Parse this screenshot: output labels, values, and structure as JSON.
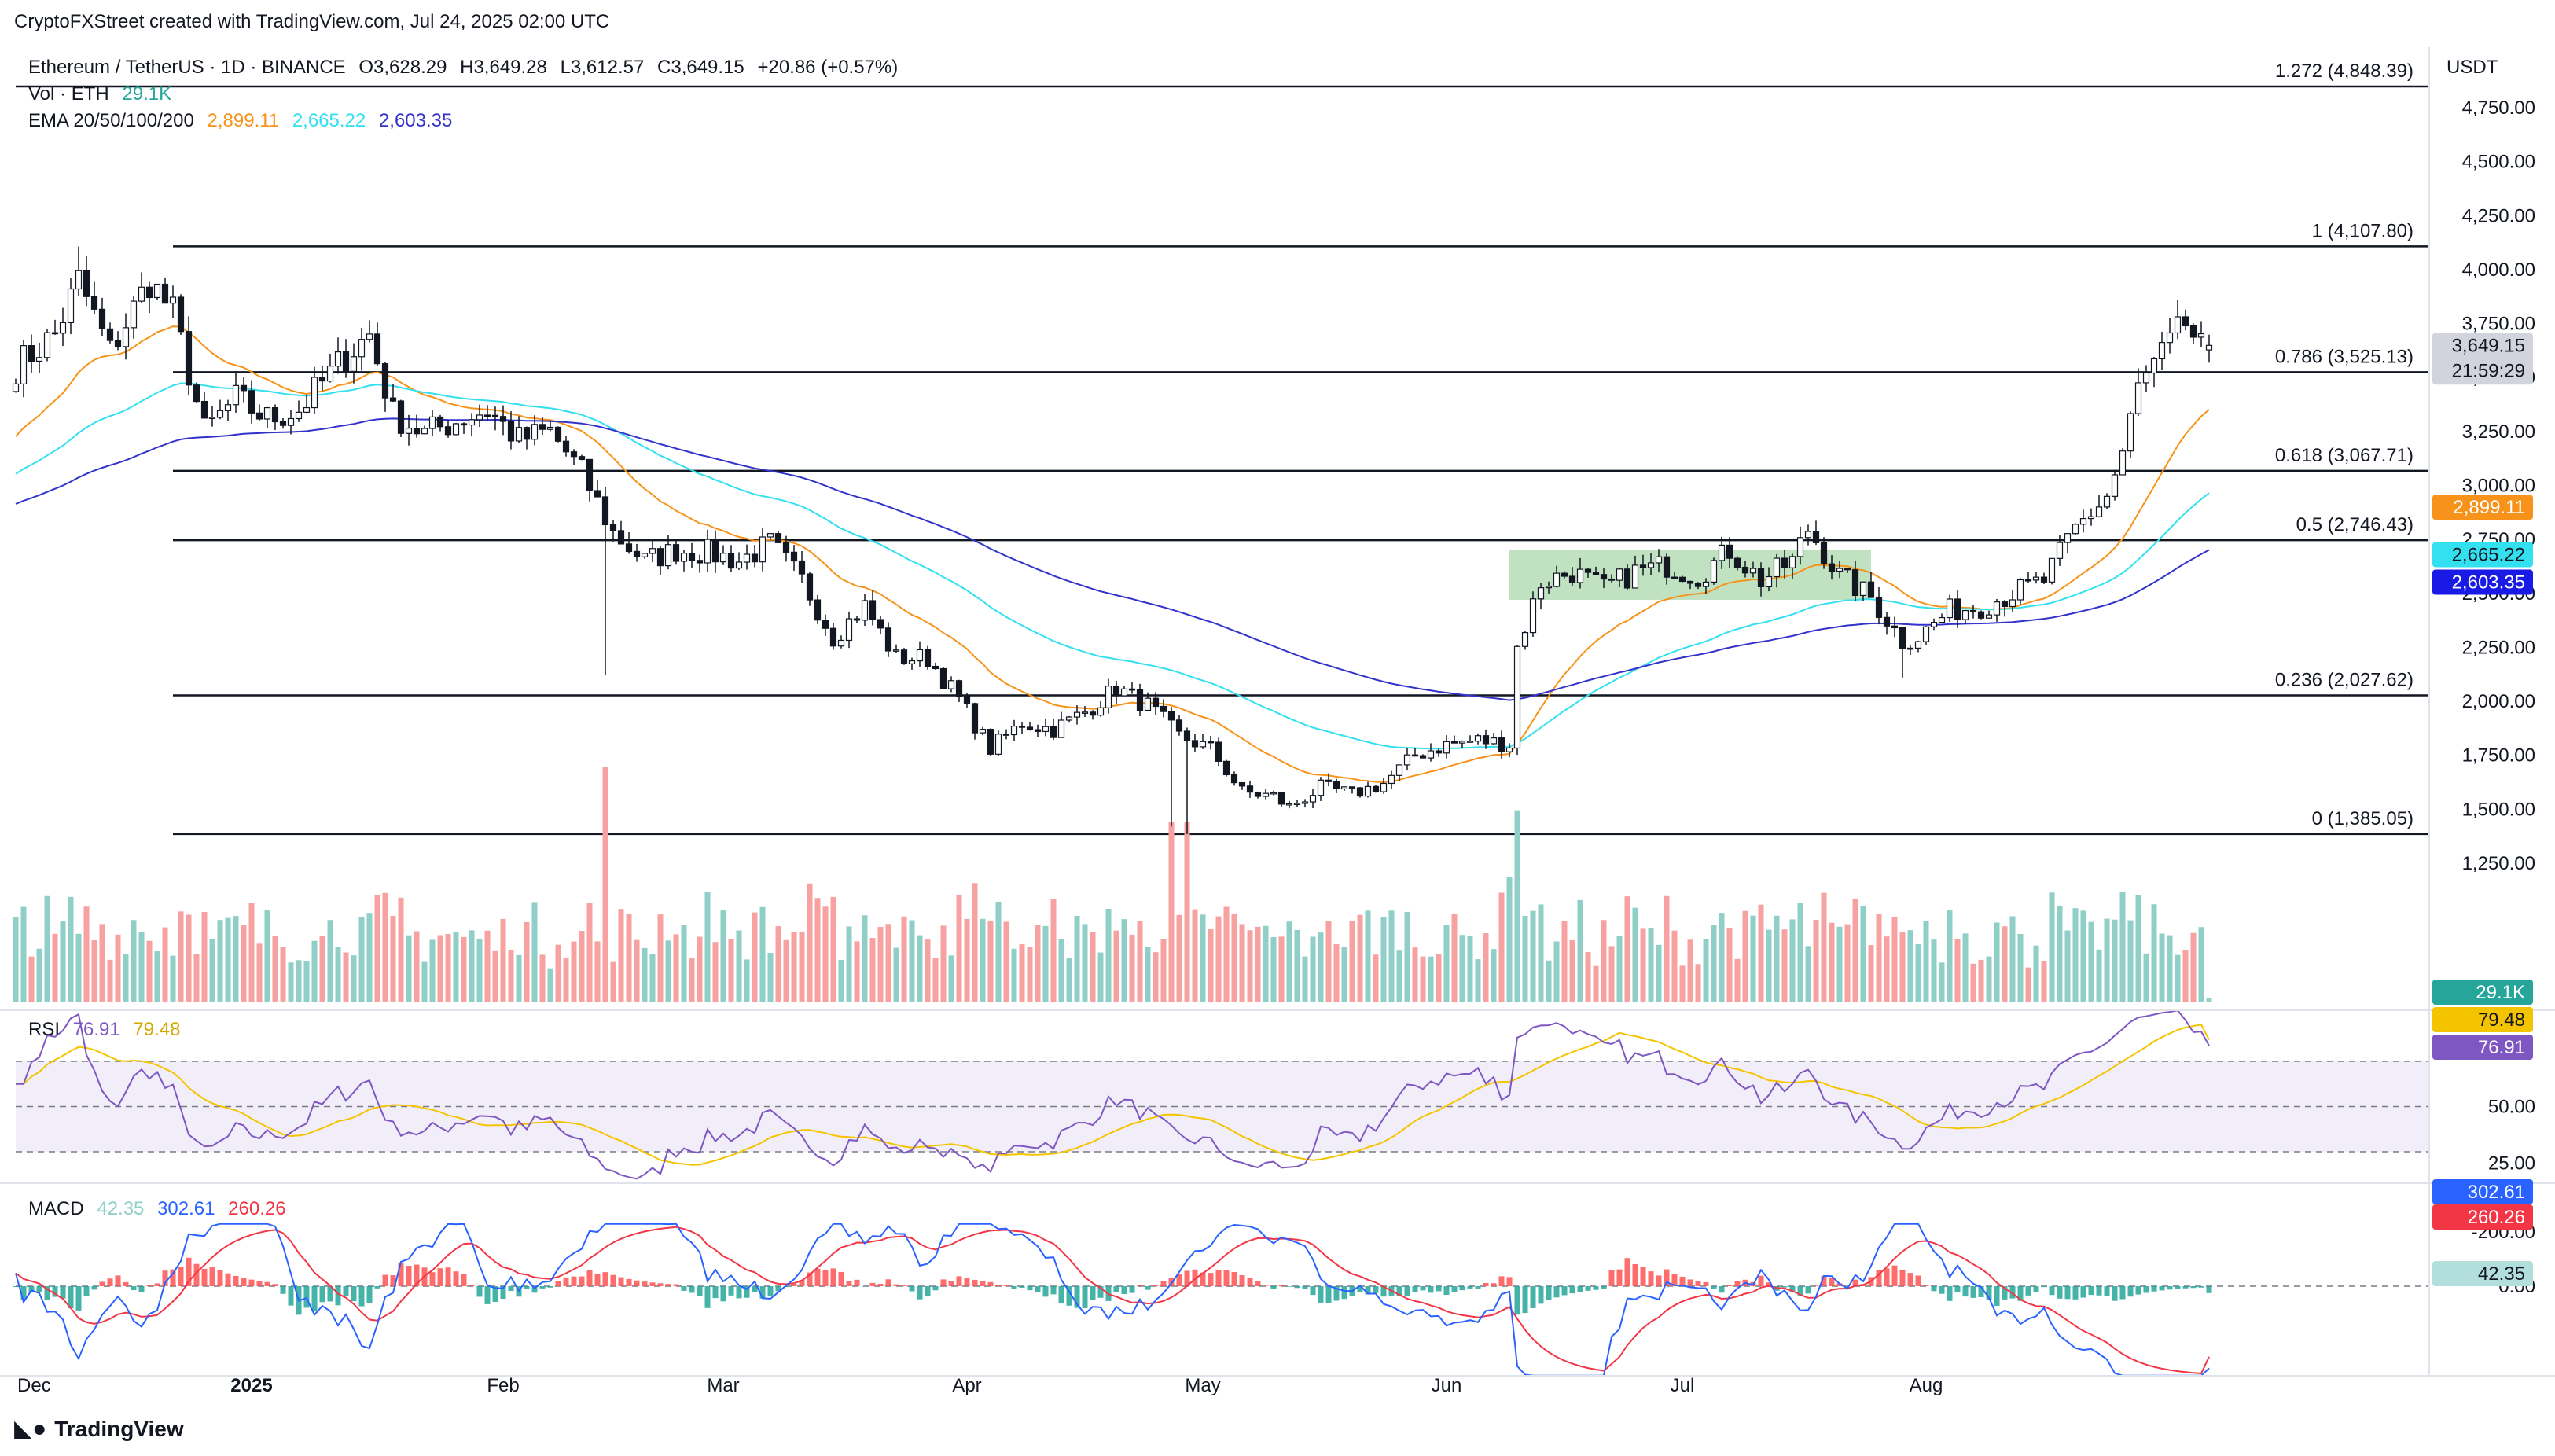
{
  "credit": "CryptoFXStreet created with TradingView.com, Jul 24, 2025 02:00 UTC",
  "brand": "TradingView",
  "logo_icon": "tradingview-logo-icon",
  "currency": "USDT",
  "legend": {
    "symbol": "Ethereum / TetherUS · 1D · BINANCE",
    "open": "O3,628.29",
    "high": "H3,649.28",
    "low": "L3,612.57",
    "close": "C3,649.15",
    "change": "+20.86 (+0.57%)",
    "vol_label": "Vol · ETH",
    "vol_value": "29.1K",
    "ema_label": "EMA 20/50/100/200",
    "ema20": "2,899.11",
    "ema50": "2,665.22",
    "ema100": "2,603.35"
  },
  "colors": {
    "up": "#26a69a",
    "down": "#ef5350",
    "vol_up": "#8fcfc7",
    "vol_down": "#f7a1a1",
    "ema20": "#f7931a",
    "ema50": "#33e0f0",
    "ema100": "#3333cc",
    "rsi": "#7e57c2",
    "rsi_ma": "#f5c400",
    "macd": "#2962ff",
    "signal": "#f23645",
    "fib": "#131722",
    "range_box": "#a5d6a7"
  },
  "chart_data": [
    {
      "type": "candlestick",
      "title": "Ethereum / TetherUS · 1D · BINANCE",
      "x_tick_labels": [
        "Dec",
        "2025",
        "Feb",
        "Mar",
        "Apr",
        "May",
        "Jun",
        "Jul",
        "Aug"
      ],
      "y_tick_labels": [
        "1,250.00",
        "1,500.00",
        "1,750.00",
        "2,000.00",
        "2,250.00",
        "2,500.00",
        "2,750.00",
        "3,000.00",
        "3,250.00",
        "3,500.00",
        "3,750.00",
        "4,000.00",
        "4,250.00",
        "4,500.00",
        "4,750.00"
      ],
      "y_ticks": [
        1250,
        1500,
        1750,
        2000,
        2250,
        2500,
        2750,
        3000,
        3250,
        3500,
        3750,
        4000,
        4250,
        4500,
        4750
      ],
      "ylim": [
        1100,
        4950
      ],
      "grid": false,
      "price_anchors": [
        [
          0,
          3550
        ],
        [
          5,
          3700
        ],
        [
          8,
          3950
        ],
        [
          12,
          3620
        ],
        [
          17,
          3950
        ],
        [
          20,
          3800
        ],
        [
          24,
          3250
        ],
        [
          28,
          3400
        ],
        [
          32,
          3310
        ],
        [
          36,
          3350
        ],
        [
          42,
          3600
        ],
        [
          45,
          3700
        ],
        [
          48,
          3330
        ],
        [
          52,
          3240
        ],
        [
          56,
          3300
        ],
        [
          60,
          3350
        ],
        [
          64,
          3210
        ],
        [
          68,
          3250
        ],
        [
          72,
          3060
        ],
        [
          76,
          2780
        ],
        [
          80,
          2650
        ],
        [
          84,
          2700
        ],
        [
          88,
          2690
        ],
        [
          92,
          2650
        ],
        [
          96,
          2730
        ],
        [
          100,
          2560
        ],
        [
          104,
          2300
        ],
        [
          108,
          2440
        ],
        [
          112,
          2200
        ],
        [
          116,
          2200
        ],
        [
          120,
          2010
        ],
        [
          124,
          1780
        ],
        [
          128,
          1900
        ],
        [
          132,
          1870
        ],
        [
          136,
          1950
        ],
        [
          140,
          2060
        ],
        [
          144,
          1980
        ],
        [
          148,
          1840
        ],
        [
          152,
          1780
        ],
        [
          156,
          1580
        ],
        [
          160,
          1560
        ],
        [
          162,
          1510
        ],
        [
          166,
          1600
        ],
        [
          170,
          1570
        ],
        [
          174,
          1620
        ],
        [
          178,
          1750
        ],
        [
          182,
          1800
        ],
        [
          186,
          1820
        ],
        [
          190,
          1800
        ],
        [
          191,
          2250
        ],
        [
          194,
          2550
        ],
        [
          198,
          2600
        ],
        [
          202,
          2520
        ],
        [
          206,
          2600
        ],
        [
          210,
          2630
        ],
        [
          214,
          2580
        ],
        [
          218,
          2700
        ],
        [
          222,
          2560
        ],
        [
          226,
          2650
        ],
        [
          228,
          2800
        ],
        [
          232,
          2580
        ],
        [
          236,
          2480
        ],
        [
          238,
          2380
        ],
        [
          240,
          2280
        ],
        [
          242,
          2300
        ],
        [
          246,
          2420
        ],
        [
          250,
          2440
        ],
        [
          254,
          2500
        ],
        [
          258,
          2560
        ],
        [
          262,
          2800
        ],
        [
          266,
          2950
        ],
        [
          268,
          3150
        ],
        [
          270,
          3450
        ],
        [
          273,
          3600
        ],
        [
          276,
          3750
        ],
        [
          278,
          3628
        ],
        [
          279,
          3649
        ]
      ],
      "last_price": "3,649.15",
      "countdown": "21:59:29",
      "fibonacci": [
        {
          "level": 1.272,
          "price": 4848.39,
          "label": "1.272 (4,848.39)"
        },
        {
          "level": 1,
          "price": 4107.8,
          "label": "1 (4,107.80)"
        },
        {
          "level": 0.786,
          "price": 3525.13,
          "label": "0.786 (3,525.13)"
        },
        {
          "level": 0.618,
          "price": 3067.71,
          "label": "0.618 (3,067.71)"
        },
        {
          "level": 0.5,
          "price": 2746.43,
          "label": "0.5 (2,746.43)"
        },
        {
          "level": 0.236,
          "price": 2027.62,
          "label": "0.236 (2,027.62)"
        },
        {
          "level": 0,
          "price": 1385.05,
          "label": "0 (1,385.05)"
        }
      ],
      "range_box": {
        "price_low": 2470,
        "price_high": 2700
      },
      "ema_last": {
        "ema20": "2,899.11",
        "ema50": "2,665.22",
        "ema100": "2,603.35"
      },
      "volume_last": "29.1K"
    },
    {
      "type": "line",
      "title": "RSI",
      "series": [
        {
          "name": "RSI",
          "last": "76.91"
        },
        {
          "name": "RSI MA",
          "last": "79.48"
        }
      ],
      "y_tick_labels": [
        "25.00",
        "50.00"
      ],
      "y_ticks": [
        25,
        50
      ],
      "bands": [
        70,
        50,
        30
      ],
      "ylim": [
        20,
        95
      ]
    },
    {
      "type": "bar",
      "title": "MACD",
      "series": [
        {
          "name": "Histogram",
          "last": "42.35"
        },
        {
          "name": "MACD",
          "last": "302.61"
        },
        {
          "name": "Signal",
          "last": "260.26"
        }
      ],
      "y_tick_labels": [
        "0.00",
        "-200.00"
      ],
      "y_ticks": [
        0,
        -200
      ],
      "ylim": [
        -270,
        370
      ]
    }
  ]
}
